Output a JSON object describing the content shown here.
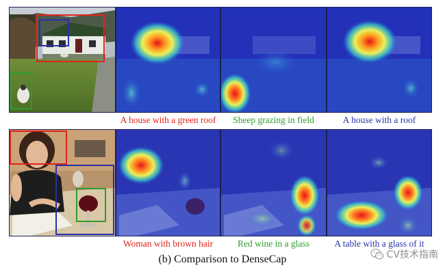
{
  "colors": {
    "red": "#e2231a",
    "green": "#2e9c2e",
    "blue": "#2732a8",
    "text": "#111111",
    "watermark": "#8e8e8e"
  },
  "rows": [
    {
      "original_alt": "Cottage with sheep in a field",
      "heatmap_alts": [
        "Attention heatmap over the house",
        "Attention heatmap over the sheep",
        "Attention heatmap over the house and roof"
      ],
      "captions": [
        {
          "text": "A house with a green roof",
          "color": "red"
        },
        {
          "text": "Sheep grazing in field",
          "color": "green"
        },
        {
          "text": "A house with a roof",
          "color": "blue"
        }
      ]
    },
    {
      "original_alt": "Woman at a table with a glass of wine",
      "heatmap_alts": [
        "Attention heatmap over the hair",
        "Attention heatmap over the wine glass",
        "Attention heatmap over the table and glass"
      ],
      "captions": [
        {
          "text": "Woman with brown hair",
          "color": "red"
        },
        {
          "text": "Red wine in a glass",
          "color": "green"
        },
        {
          "text": "A table with a glass of it",
          "color": "blue"
        }
      ]
    }
  ],
  "figure_caption": "(b) Comparison to DenseCap",
  "watermark": {
    "icon": "wechat-icon",
    "text": "CV技术指南"
  }
}
